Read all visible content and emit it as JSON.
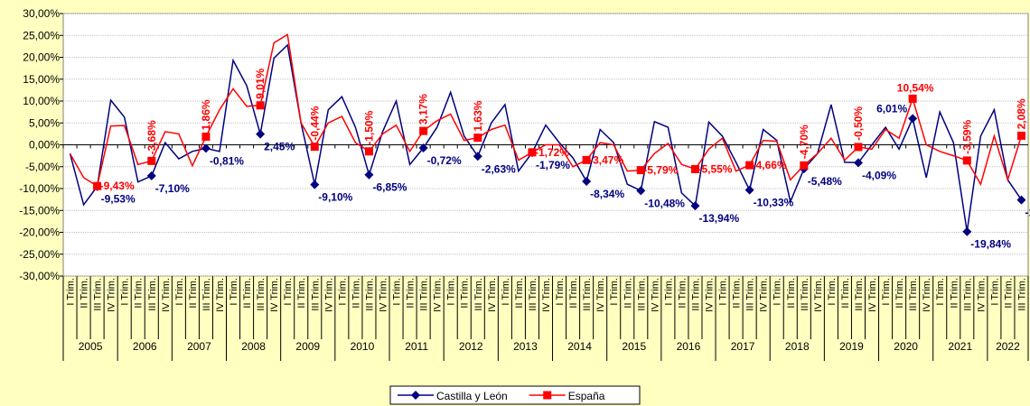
{
  "chart_data": {
    "type": "line",
    "categories": [
      "I Trim.",
      "II Trim.",
      "III Trim.",
      "IV Trim.",
      "I Trim.",
      "II Trim.",
      "III Trim.",
      "IV Trim.",
      "I Trim.",
      "II Trim.",
      "III Trim.",
      "IV Trim.",
      "I Trim.",
      "II Trim.",
      "III Trim.",
      "IV Trim.",
      "I Trim.",
      "II Trim.",
      "III Trim.",
      "IV Trim.",
      "I Trim.",
      "II Trim.",
      "III Trim.",
      "IV Trim.",
      "I Trim.",
      "II Trim.",
      "III Trim.",
      "IV Trim.",
      "I Trim.",
      "II Trim.",
      "III Trim.",
      "IV Trim.",
      "I Trim.",
      "II Trim.",
      "III Trim.",
      "IV Trim.",
      "I Trim.",
      "II Trim.",
      "III Trim.",
      "IV Trim.",
      "I Trim.",
      "II Trim.",
      "III Trim.",
      "IV Trim.",
      "I Trim.",
      "II Trim.",
      "III Trim.",
      "IV Trim.",
      "I Trim.",
      "II Trim.",
      "III Trim.",
      "IV Trim.",
      "I Trim.",
      "II Trim.",
      "III Trim.",
      "IV Trim.",
      "I Trim.",
      "II Trim.",
      "III Trim.",
      "IV Trim.",
      "I Trim.",
      "II Trim.",
      "III Trim.",
      "IV Trim.",
      "I Trim.",
      "II Trim.",
      "III Trim.",
      "IV Trim.",
      "I Trim.",
      "II Trim.",
      "III Trim."
    ],
    "years": [
      "2005",
      "2006",
      "2007",
      "2008",
      "2009",
      "2010",
      "2011",
      "2012",
      "2013",
      "2014",
      "2015",
      "2016",
      "2017",
      "2018",
      "2019",
      "2020",
      "2021",
      "2022"
    ],
    "series": [
      {
        "name": "Castilla y León",
        "color": "#000080",
        "values": [
          -2,
          -13.7,
          -9.53,
          10.2,
          6.3,
          -8.5,
          -7.1,
          0.5,
          -3.2,
          -1.5,
          -0.81,
          -1.5,
          19.3,
          13.5,
          2.45,
          19.8,
          22.8,
          5,
          -9.1,
          8,
          11,
          4,
          -6.85,
          3,
          10,
          -4.5,
          -0.72,
          4,
          12,
          2,
          -2.63,
          5,
          9.2,
          -6,
          -1.79,
          4.5,
          0.5,
          -3,
          -8.34,
          3.5,
          0.5,
          -9,
          -10.48,
          5.3,
          4,
          -11,
          -13.94,
          5.2,
          2,
          -4,
          -10.33,
          3.5,
          1,
          -13,
          -5.48,
          -2,
          9.2,
          -4,
          -4.09,
          0,
          4,
          -1,
          6.01,
          -7.5,
          7.5,
          0.5,
          -19.84,
          2,
          8,
          -8,
          -12.6
        ],
        "value_labels": [
          null,
          null,
          "-9,53%",
          null,
          null,
          null,
          "-7,10%",
          null,
          null,
          null,
          "-0,81%",
          null,
          null,
          null,
          "2,45%",
          null,
          null,
          null,
          "-9,10%",
          null,
          null,
          null,
          "-6,85%",
          null,
          null,
          null,
          "-0,72%",
          null,
          null,
          null,
          "-2,63%",
          null,
          null,
          null,
          "-1,79%",
          null,
          null,
          null,
          "-8,34%",
          null,
          null,
          null,
          "-10,48%",
          null,
          null,
          null,
          "-13,94%",
          null,
          null,
          null,
          "-10,33%",
          null,
          null,
          null,
          "-5,48%",
          null,
          null,
          null,
          "-4,09%",
          null,
          null,
          null,
          "6,01%",
          null,
          null,
          null,
          "-19,84%",
          null,
          null,
          null,
          "-12,60%"
        ]
      },
      {
        "name": "España",
        "color": "#ff0000",
        "values": [
          -2,
          -7.5,
          -9.43,
          4.3,
          4.4,
          -4.5,
          -3.68,
          3,
          2.5,
          -4.8,
          1.86,
          8,
          12.8,
          8.8,
          9.01,
          23.3,
          25.2,
          5,
          -0.44,
          5,
          6.5,
          0.5,
          -1.5,
          2.5,
          4.5,
          -1.5,
          3.17,
          5.5,
          7,
          1,
          1.63,
          3.5,
          4.5,
          -3.5,
          -1.72,
          0,
          0,
          -5,
          -3.47,
          0.5,
          0,
          -6,
          -5.79,
          -2,
          0.3,
          -4.5,
          -5.55,
          -1,
          1.5,
          -6,
          -4.66,
          1,
          0.8,
          -8,
          -4.7,
          -2,
          1.5,
          -3.5,
          -0.5,
          -1,
          3.5,
          1.5,
          10.54,
          0,
          -1.5,
          -2.5,
          -3.59,
          -9,
          2,
          -8,
          2.08
        ],
        "value_labels": [
          null,
          null,
          "-9,43%",
          null,
          null,
          null,
          "-3,68%",
          null,
          null,
          null,
          "1,86%",
          null,
          null,
          null,
          "9,01%",
          null,
          null,
          null,
          "-0,44%",
          null,
          null,
          null,
          "-1,50%",
          null,
          null,
          null,
          "3,17%",
          null,
          null,
          null,
          "1,63%",
          null,
          null,
          null,
          "-1,72%",
          null,
          null,
          null,
          "-3,47%",
          null,
          null,
          null,
          "-5,79%",
          null,
          null,
          null,
          "-5,55%",
          null,
          null,
          null,
          "-4,66%",
          null,
          null,
          null,
          "-4,70%",
          null,
          null,
          null,
          "-0,50%",
          null,
          null,
          null,
          "10,54%",
          null,
          null,
          null,
          "-3,59%",
          null,
          null,
          null,
          "2,08%"
        ]
      }
    ],
    "ylim": [
      -30,
      30
    ],
    "yticks": [
      {
        "value": -30,
        "label": "-30,00%"
      },
      {
        "value": -25,
        "label": "-25,00%"
      },
      {
        "value": -20,
        "label": "-20,00%"
      },
      {
        "value": -15,
        "label": "-15,00%"
      },
      {
        "value": -10,
        "label": "-10,00%"
      },
      {
        "value": -5,
        "label": "-5,00%"
      },
      {
        "value": 0,
        "label": "0,00%"
      },
      {
        "value": 5,
        "label": "5,00%"
      },
      {
        "value": 10,
        "label": "10,00%"
      },
      {
        "value": 15,
        "label": "15,00%"
      },
      {
        "value": 20,
        "label": "20,00%"
      },
      {
        "value": 25,
        "label": "25,00%"
      },
      {
        "value": 30,
        "label": "30,00%"
      }
    ],
    "grid": true,
    "legend": "bottom"
  }
}
